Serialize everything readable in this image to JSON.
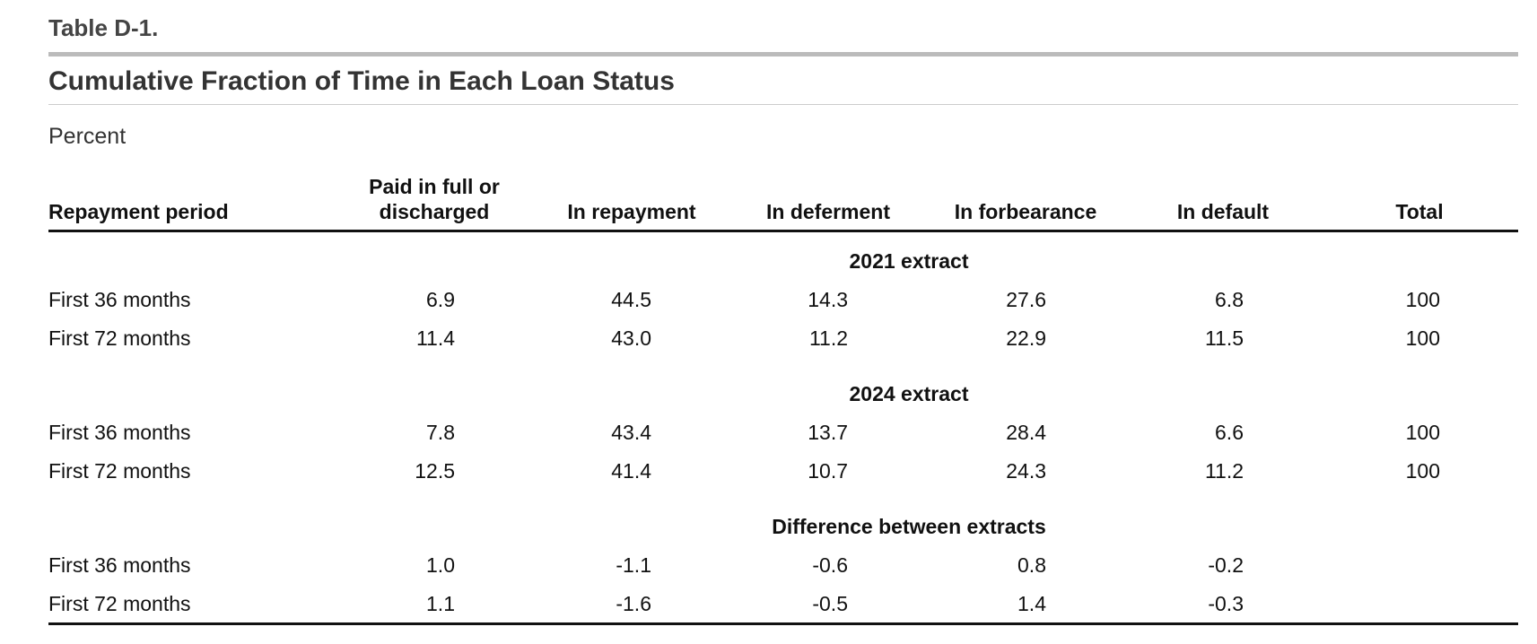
{
  "label": "Table D-1.",
  "title": "Cumulative Fraction of Time in Each Loan Status",
  "unit": "Percent",
  "table": {
    "columns": [
      "Repayment period",
      "Paid in full or discharged",
      "In repayment",
      "In deferment",
      "In forbearance",
      "In default",
      "Total"
    ],
    "sections": [
      {
        "label": "2021 extract",
        "rows": [
          [
            "First 36 months",
            "6.9",
            "44.5",
            "14.3",
            "27.6",
            "6.8",
            "100"
          ],
          [
            "First 72 months",
            "11.4",
            "43.0",
            "11.2",
            "22.9",
            "11.5",
            "100"
          ]
        ]
      },
      {
        "label": "2024 extract",
        "rows": [
          [
            "First 36 months",
            "7.8",
            "43.4",
            "13.7",
            "28.4",
            "6.6",
            "100"
          ],
          [
            "First 72 months",
            "12.5",
            "41.4",
            "10.7",
            "24.3",
            "11.2",
            "100"
          ]
        ]
      },
      {
        "label": "Difference between extracts",
        "rows": [
          [
            "First 36 months",
            "1.0",
            "-1.1",
            "-0.6",
            "0.8",
            "-0.2"
          ],
          [
            "First 72 months",
            "1.1",
            "-1.6",
            "-0.5",
            "1.4",
            "-0.3"
          ]
        ]
      }
    ]
  }
}
